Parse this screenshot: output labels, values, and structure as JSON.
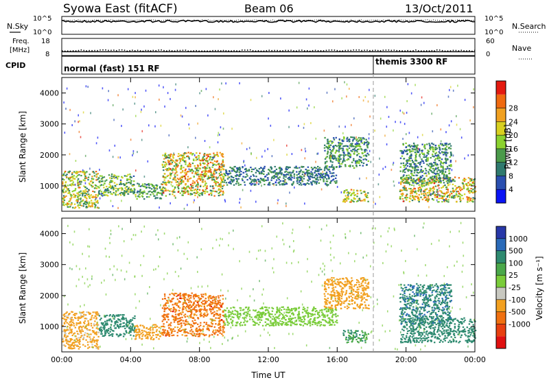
{
  "header": {
    "title_left": "Syowa East (fitACF)",
    "title_center": "Beam 06",
    "title_right": "13/Oct/2011"
  },
  "nsky_panel": {
    "left_label": "N.Sky",
    "right_label": "N.Search",
    "left_ticks": [
      "10^5",
      "10^0"
    ],
    "right_ticks": [
      "10^5",
      "10^0"
    ],
    "nsky_level_log10": 4.2,
    "nsearch_level_log10": 4.6
  },
  "freq_panel": {
    "left_label_line1": "Freq.",
    "left_label_line2": "[MHz]",
    "right_label": "Nave",
    "left_ticks": [
      "18",
      "8"
    ],
    "right_ticks": [
      "60",
      "0"
    ],
    "freq_mhz": 10.4,
    "nave": 22
  },
  "cpid_panel": {
    "label": "CPID",
    "segments": [
      {
        "name": "normal (fast) 151 RF",
        "start_hour": 0,
        "end_hour": 18.1
      },
      {
        "name": "themis 3300 RF",
        "start_hour": 18.1,
        "end_hour": 24
      }
    ]
  },
  "axes": {
    "x_ticks": [
      "00:00",
      "04:00",
      "08:00",
      "12:00",
      "16:00",
      "20:00",
      "00:00"
    ],
    "x_label": "Time UT",
    "y_ticks": [
      "1000",
      "2000",
      "3000",
      "4000"
    ],
    "y_label": "Slant Range [km]"
  },
  "power_colorbar": {
    "label": "Power [dB]",
    "ticks": [
      "4",
      "8",
      "12",
      "16",
      "20",
      "24",
      "28"
    ],
    "colors": [
      "#0a14f5",
      "#2a4fb0",
      "#2f7a6e",
      "#4a9a4a",
      "#8bd22f",
      "#d8d020",
      "#f0a020",
      "#f06a10",
      "#e41a10"
    ]
  },
  "velocity_colorbar": {
    "label": "Velocity [m s⁻¹]",
    "ticks": [
      "1000",
      "500",
      "100",
      "25",
      "-25",
      "-100",
      "-500",
      "-1000"
    ],
    "colors": [
      "#2838a8",
      "#2a6ab8",
      "#2e8a70",
      "#4aa84a",
      "#7acc3a",
      "#c8c8c0",
      "#f2a020",
      "#f07010",
      "#e84010",
      "#e01010"
    ]
  },
  "chart_data": [
    {
      "type": "heatmap",
      "name": "Power",
      "x_range_hours": [
        0,
        24
      ],
      "y_range_km": [
        180,
        4500
      ],
      "units": "dB",
      "regions": [
        {
          "t0": 0.0,
          "t1": 2.1,
          "r0": 300,
          "r1": 1500,
          "level": 18
        },
        {
          "t0": 2.1,
          "t1": 4.2,
          "r0": 700,
          "r1": 1400,
          "level": 15
        },
        {
          "t0": 4.2,
          "t1": 5.8,
          "r0": 600,
          "r1": 1100,
          "level": 13
        },
        {
          "t0": 5.8,
          "t1": 9.4,
          "r0": 700,
          "r1": 2100,
          "level": 20
        },
        {
          "t0": 9.4,
          "t1": 16.0,
          "r0": 1050,
          "r1": 1650,
          "level": 10
        },
        {
          "t0": 15.2,
          "t1": 17.8,
          "r0": 1600,
          "r1": 2600,
          "level": 12
        },
        {
          "t0": 16.3,
          "t1": 17.8,
          "r0": 500,
          "r1": 900,
          "level": 18
        },
        {
          "t0": 19.6,
          "t1": 24.0,
          "r0": 500,
          "r1": 1300,
          "level": 20
        },
        {
          "t0": 19.6,
          "t1": 22.6,
          "r0": 1100,
          "r1": 2400,
          "level": 12
        }
      ]
    },
    {
      "type": "heatmap",
      "name": "Velocity",
      "x_range_hours": [
        0,
        24
      ],
      "y_range_km": [
        180,
        4500
      ],
      "units": "m s-1",
      "regions": [
        {
          "t0": 0.0,
          "t1": 2.1,
          "r0": 300,
          "r1": 1500,
          "level": -150
        },
        {
          "t0": 2.1,
          "t1": 4.2,
          "r0": 700,
          "r1": 1400,
          "level": 300
        },
        {
          "t0": 4.2,
          "t1": 5.8,
          "r0": 600,
          "r1": 1100,
          "level": -200
        },
        {
          "t0": 5.8,
          "t1": 9.4,
          "r0": 700,
          "r1": 2100,
          "level": -700
        },
        {
          "t0": 9.4,
          "t1": 16.0,
          "r0": 1050,
          "r1": 1650,
          "level": 0
        },
        {
          "t0": 15.2,
          "t1": 17.8,
          "r0": 1600,
          "r1": 2600,
          "level": -300
        },
        {
          "t0": 16.3,
          "t1": 17.8,
          "r0": 500,
          "r1": 900,
          "level": 80
        },
        {
          "t0": 19.6,
          "t1": 24.0,
          "r0": 500,
          "r1": 1300,
          "level": 250
        },
        {
          "t0": 19.6,
          "t1": 22.6,
          "r0": 1100,
          "r1": 2400,
          "level": 400
        }
      ]
    }
  ]
}
